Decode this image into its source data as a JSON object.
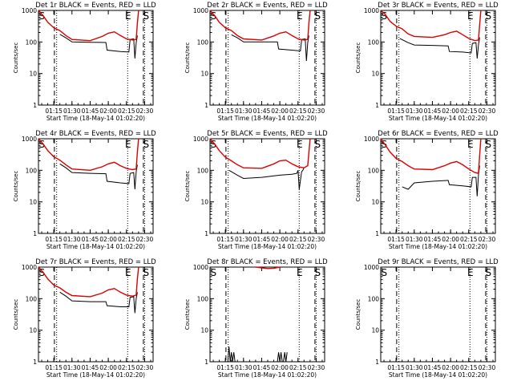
{
  "colors": {
    "events": "#000000",
    "lld": "#dd0000",
    "axis": "#000000",
    "background": "#ffffff"
  },
  "chart_data": [
    {
      "type": "line",
      "title": "Det 1r BLACK = Events, RED = LLD",
      "xlabel": "Start Time (18-May-14 01:02:20)",
      "ylabel": "Counts/sec",
      "x_ticks": [
        "01:15",
        "01:30",
        "01:45",
        "02:00",
        "02:15",
        "02:30"
      ],
      "y_ticks": [
        "1",
        "10",
        "100",
        "1000"
      ],
      "yscale": "log",
      "ylim": [
        1,
        1000
      ],
      "markers": [
        "S",
        "E",
        "S"
      ],
      "series": [
        {
          "name": "Events",
          "color": "#000000",
          "x": [
            "01:20",
            "01:25",
            "01:30",
            "01:45",
            "01:58",
            "01:59",
            "02:10",
            "02:17",
            "02:18",
            "02:21",
            "02:22",
            "02:23",
            "02:24"
          ],
          "y": [
            175,
            135,
            100,
            98,
            96,
            55,
            50,
            48,
            120,
            125,
            30,
            95,
            160
          ]
        },
        {
          "name": "LLD",
          "color": "#dd0000",
          "x": [
            "01:02",
            "01:06",
            "01:10",
            "01:15",
            "01:20",
            "01:25",
            "01:30",
            "01:45",
            "01:55",
            "02:00",
            "02:05",
            "02:10",
            "02:15",
            "02:20",
            "02:23",
            "02:24",
            "02:25"
          ],
          "y": [
            1000,
            700,
            420,
            280,
            230,
            160,
            120,
            110,
            150,
            190,
            210,
            160,
            125,
            115,
            120,
            400,
            1000
          ]
        }
      ]
    },
    {
      "type": "line",
      "title": "Det 2r BLACK = Events, RED = LLD",
      "xlabel": "Start Time (18-May-14 01:02:20)",
      "ylabel": "Counts/sec",
      "x_ticks": [
        "01:15",
        "01:30",
        "01:45",
        "02:00",
        "02:15",
        "02:30"
      ],
      "y_ticks": [
        "1",
        "10",
        "100",
        "1000"
      ],
      "yscale": "log",
      "ylim": [
        1,
        1000
      ],
      "markers": [
        "S",
        "E",
        "S"
      ],
      "series": [
        {
          "name": "Events",
          "color": "#000000",
          "x": [
            "01:20",
            "01:25",
            "01:30",
            "01:45",
            "01:58",
            "01:59",
            "02:10",
            "02:17",
            "02:18",
            "02:21",
            "02:22",
            "02:23",
            "02:24"
          ],
          "y": [
            170,
            135,
            100,
            100,
            100,
            60,
            55,
            52,
            120,
            125,
            25,
            95,
            160
          ]
        },
        {
          "name": "LLD",
          "color": "#dd0000",
          "x": [
            "01:02",
            "01:06",
            "01:10",
            "01:15",
            "01:20",
            "01:25",
            "01:30",
            "01:45",
            "01:55",
            "02:00",
            "02:05",
            "02:10",
            "02:15",
            "02:20",
            "02:23",
            "02:24",
            "02:25"
          ],
          "y": [
            1000,
            700,
            420,
            280,
            230,
            160,
            125,
            115,
            155,
            190,
            210,
            160,
            125,
            115,
            120,
            400,
            1000
          ]
        }
      ]
    },
    {
      "type": "line",
      "title": "Det 3r BLACK = Events, RED = LLD",
      "xlabel": "Start Time (18-May-14 01:02:20)",
      "ylabel": "Counts/sec",
      "x_ticks": [
        "01:15",
        "01:30",
        "01:45",
        "02:00",
        "02:15",
        "02:30"
      ],
      "y_ticks": [
        "1",
        "10",
        "100",
        "1000"
      ],
      "yscale": "log",
      "ylim": [
        1,
        1000
      ],
      "markers": [
        "S",
        "E",
        "S"
      ],
      "series": [
        {
          "name": "Events",
          "color": "#000000",
          "x": [
            "01:18",
            "01:25",
            "01:30",
            "01:45",
            "01:58",
            "01:59",
            "02:10",
            "02:17",
            "02:18",
            "02:21",
            "02:22",
            "02:23",
            "02:24"
          ],
          "y": [
            130,
            95,
            80,
            78,
            75,
            50,
            48,
            45,
            90,
            95,
            30,
            80,
            140
          ]
        },
        {
          "name": "LLD",
          "color": "#dd0000",
          "x": [
            "01:02",
            "01:06",
            "01:10",
            "01:15",
            "01:20",
            "01:25",
            "01:30",
            "01:45",
            "01:55",
            "02:00",
            "02:05",
            "02:10",
            "02:15",
            "02:20",
            "02:23",
            "02:24",
            "02:25"
          ],
          "y": [
            1000,
            750,
            450,
            320,
            260,
            180,
            150,
            140,
            170,
            200,
            220,
            170,
            130,
            110,
            115,
            350,
            1000
          ]
        }
      ]
    },
    {
      "type": "line",
      "title": "Det 4r BLACK = Events, RED = LLD",
      "xlabel": "Start Time (18-May-14 01:02:20)",
      "ylabel": "Counts/sec",
      "x_ticks": [
        "01:15",
        "01:30",
        "01:45",
        "02:00",
        "02:15",
        "02:30"
      ],
      "y_ticks": [
        "1",
        "10",
        "100",
        "1000"
      ],
      "yscale": "log",
      "ylim": [
        1,
        1000
      ],
      "markers": [
        "S",
        "E",
        "S"
      ],
      "series": [
        {
          "name": "Events",
          "color": "#000000",
          "x": [
            "01:20",
            "01:25",
            "01:30",
            "01:45",
            "01:58",
            "01:59",
            "02:10",
            "02:17",
            "02:18",
            "02:21",
            "02:22",
            "02:23",
            "02:24"
          ],
          "y": [
            160,
            120,
            85,
            80,
            78,
            45,
            40,
            38,
            80,
            85,
            25,
            90,
            150
          ]
        },
        {
          "name": "LLD",
          "color": "#dd0000",
          "x": [
            "01:02",
            "01:06",
            "01:10",
            "01:15",
            "01:20",
            "01:25",
            "01:30",
            "01:45",
            "01:55",
            "02:00",
            "02:05",
            "02:10",
            "02:15",
            "02:20",
            "02:23",
            "02:24",
            "02:25"
          ],
          "y": [
            1000,
            700,
            420,
            270,
            210,
            150,
            110,
            100,
            130,
            160,
            180,
            140,
            115,
            105,
            110,
            380,
            1000
          ]
        }
      ]
    },
    {
      "type": "line",
      "title": "Det 5r BLACK = Events, RED = LLD",
      "xlabel": "Start Time (18-May-14 01:02:20)",
      "ylabel": "Counts/sec",
      "x_ticks": [
        "01:15",
        "01:30",
        "01:45",
        "02:00",
        "02:15",
        "02:30"
      ],
      "y_ticks": [
        "1",
        "10",
        "100",
        "1000"
      ],
      "yscale": "log",
      "ylim": [
        1,
        1000
      ],
      "markers": [
        "S",
        "E",
        "S"
      ],
      "series": [
        {
          "name": "Events",
          "color": "#000000",
          "x": [
            "01:18",
            "01:25",
            "01:30",
            "01:45",
            "02:00",
            "02:10",
            "02:14",
            "02:15",
            "02:16",
            "02:18",
            "02:19",
            "02:20"
          ],
          "y": [
            100,
            70,
            55,
            60,
            70,
            75,
            80,
            100,
            25,
            90,
            100,
            120
          ]
        },
        {
          "name": "LLD",
          "color": "#dd0000",
          "x": [
            "01:02",
            "01:06",
            "01:10",
            "01:15",
            "01:20",
            "01:25",
            "01:30",
            "01:45",
            "01:55",
            "02:00",
            "02:05",
            "02:10",
            "02:15",
            "02:20",
            "02:23",
            "02:25"
          ],
          "y": [
            1000,
            700,
            420,
            260,
            200,
            150,
            120,
            115,
            160,
            200,
            210,
            160,
            130,
            120,
            140,
            1000
          ]
        }
      ]
    },
    {
      "type": "line",
      "title": "Det 6r BLACK = Events, RED = LLD",
      "xlabel": "Start Time (18-May-14 01:02:20)",
      "ylabel": "Counts/sec",
      "x_ticks": [
        "01:15",
        "01:30",
        "01:45",
        "02:00",
        "02:15",
        "02:30"
      ],
      "y_ticks": [
        "1",
        "10",
        "100",
        "1000"
      ],
      "yscale": "log",
      "ylim": [
        1,
        1000
      ],
      "markers": [
        "S",
        "E",
        "S"
      ],
      "series": [
        {
          "name": "Events",
          "color": "#000000",
          "x": [
            "01:20",
            "01:25",
            "01:30",
            "01:45",
            "01:58",
            "01:59",
            "02:10",
            "02:17",
            "02:18",
            "02:21",
            "02:22",
            "02:23",
            "02:24"
          ],
          "y": [
            30,
            25,
            40,
            45,
            48,
            35,
            32,
            30,
            60,
            60,
            15,
            70,
            140
          ]
        },
        {
          "name": "LLD",
          "color": "#dd0000",
          "x": [
            "01:02",
            "01:06",
            "01:10",
            "01:15",
            "01:20",
            "01:25",
            "01:30",
            "01:45",
            "01:55",
            "02:00",
            "02:05",
            "02:10",
            "02:15",
            "02:20",
            "02:23",
            "02:24",
            "02:25"
          ],
          "y": [
            1000,
            650,
            380,
            240,
            190,
            140,
            110,
            105,
            140,
            170,
            190,
            150,
            110,
            85,
            80,
            300,
            1000
          ]
        }
      ]
    },
    {
      "type": "line",
      "title": "Det 7r BLACK = Events, RED = LLD",
      "xlabel": "Start Time (18-May-14 01:02:20)",
      "ylabel": "Counts/sec",
      "x_ticks": [
        "01:15",
        "01:30",
        "01:45",
        "02:00",
        "02:15",
        "02:30"
      ],
      "y_ticks": [
        "1",
        "10",
        "100",
        "1000"
      ],
      "yscale": "log",
      "ylim": [
        1,
        1000
      ],
      "markers": [
        "S",
        "E",
        "S"
      ],
      "series": [
        {
          "name": "Events",
          "color": "#000000",
          "x": [
            "01:20",
            "01:25",
            "01:30",
            "01:45",
            "01:58",
            "01:59",
            "02:10",
            "02:17",
            "02:18",
            "02:21",
            "02:22",
            "02:23",
            "02:24"
          ],
          "y": [
            160,
            120,
            85,
            80,
            80,
            60,
            55,
            55,
            110,
            115,
            35,
            100,
            160
          ]
        },
        {
          "name": "LLD",
          "color": "#dd0000",
          "x": [
            "01:02",
            "01:06",
            "01:10",
            "01:15",
            "01:20",
            "01:25",
            "01:30",
            "01:45",
            "01:55",
            "02:00",
            "02:05",
            "02:10",
            "02:15",
            "02:20",
            "02:23",
            "02:24",
            "02:25"
          ],
          "y": [
            1000,
            700,
            420,
            270,
            220,
            160,
            125,
            115,
            150,
            190,
            210,
            160,
            130,
            120,
            130,
            420,
            1000
          ]
        }
      ]
    },
    {
      "type": "line",
      "title": "Det 8r BLACK = Events, RED = LLD",
      "xlabel": "Start Time (18-May-14 01:02:20)",
      "ylabel": "Counts/sec",
      "x_ticks": [
        "01:15",
        "01:30",
        "01:45",
        "02:00",
        "02:15",
        "02:30"
      ],
      "y_ticks": [
        "1",
        "10",
        "100",
        "1000"
      ],
      "yscale": "log",
      "ylim": [
        1,
        1000
      ],
      "markers": [
        "S",
        "E",
        "S"
      ],
      "series": [
        {
          "name": "Events",
          "color": "#000000",
          "x": [
            "01:17",
            "01:18",
            "01:19",
            "01:20",
            "01:21",
            "01:22",
            "01:23",
            "01:24",
            "01:58",
            "01:59",
            "02:00",
            "02:01",
            "02:02",
            "02:03",
            "02:04",
            "02:05",
            "02:06"
          ],
          "y": [
            1,
            3,
            1,
            2,
            1,
            2,
            1,
            1,
            1,
            2,
            1,
            2,
            1,
            1,
            2,
            1,
            2
          ]
        },
        {
          "name": "LLD",
          "color": "#dd0000",
          "x": [
            "01:40",
            "01:45",
            "01:50",
            "01:55",
            "02:00"
          ],
          "y": [
            1000,
            950,
            900,
            920,
            1000
          ]
        }
      ]
    },
    {
      "type": "line",
      "title": "Det 9r BLACK = Events, RED = LLD",
      "xlabel": "Start Time (18-May-14 01:02:20)",
      "ylabel": "Counts/sec",
      "x_ticks": [
        "01:15",
        "01:30",
        "01:45",
        "02:00",
        "02:15",
        "02:30"
      ],
      "y_ticks": [
        "1",
        "10",
        "100",
        "1000"
      ],
      "yscale": "log",
      "ylim": [
        1,
        1000
      ],
      "markers": [
        "S",
        "E",
        "S"
      ],
      "series": [
        {
          "name": "Events",
          "color": "#000000",
          "x": [],
          "y": []
        },
        {
          "name": "LLD",
          "color": "#dd0000",
          "x": [],
          "y": []
        }
      ]
    }
  ]
}
